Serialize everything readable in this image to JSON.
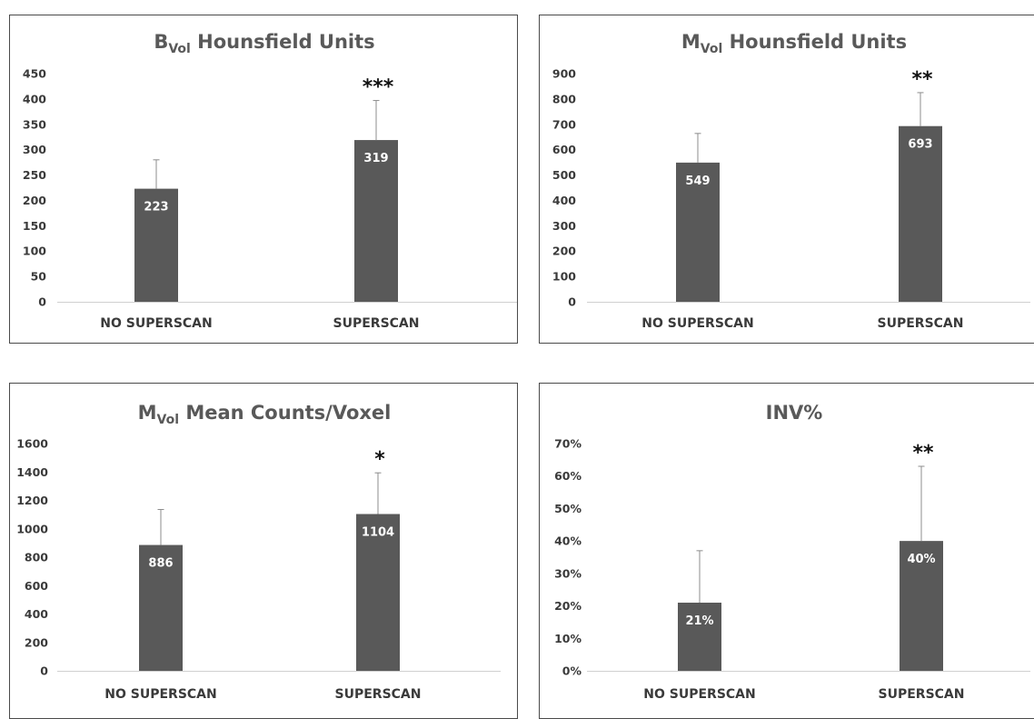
{
  "colors": {
    "bar": "#595959",
    "error_bar": "#8c8c8c",
    "axis": "#d0d0d0",
    "title": "#595959"
  },
  "chart_data": [
    {
      "type": "bar",
      "title": "BVol Hounsfield Units",
      "title_main": "B",
      "title_sub": "Vol",
      "title_rest": " Hounsfield Units",
      "categories": [
        "NO SUPERSCAN",
        "SUPERSCAN"
      ],
      "values": [
        223,
        319
      ],
      "value_labels": [
        "223",
        "319"
      ],
      "error_plus": [
        57,
        78
      ],
      "significance": [
        "",
        "***"
      ],
      "ylim": [
        0,
        450
      ],
      "yticks": [
        0,
        50,
        100,
        150,
        200,
        250,
        300,
        350,
        400,
        450
      ],
      "ytick_labels": [
        "0",
        "50",
        "100",
        "150",
        "200",
        "250",
        "300",
        "350",
        "400",
        "450"
      ],
      "xlabel": "",
      "ylabel": "",
      "grid": false
    },
    {
      "type": "bar",
      "title": "MVol Hounsfield Units",
      "title_main": "M",
      "title_sub": "Vol",
      "title_rest": " Hounsfield Units",
      "categories": [
        "NO SUPERSCAN",
        "SUPERSCAN"
      ],
      "values": [
        549,
        693
      ],
      "value_labels": [
        "549",
        "693"
      ],
      "error_plus": [
        115,
        132
      ],
      "significance": [
        "",
        "**"
      ],
      "ylim": [
        0,
        900
      ],
      "yticks": [
        0,
        100,
        200,
        300,
        400,
        500,
        600,
        700,
        800,
        900
      ],
      "ytick_labels": [
        "0",
        "100",
        "200",
        "300",
        "400",
        "500",
        "600",
        "700",
        "800",
        "900"
      ],
      "xlabel": "",
      "ylabel": "",
      "grid": false
    },
    {
      "type": "bar",
      "title": "MVol Mean Counts/Voxel",
      "title_main": "M",
      "title_sub": "Vol",
      "title_rest": " Mean Counts/Voxel",
      "categories": [
        "NO SUPERSCAN",
        "SUPERSCAN"
      ],
      "values": [
        886,
        1104
      ],
      "value_labels": [
        "886",
        "1104"
      ],
      "error_plus": [
        250,
        290
      ],
      "significance": [
        "",
        "*"
      ],
      "ylim": [
        0,
        1600
      ],
      "yticks": [
        0,
        200,
        400,
        600,
        800,
        1000,
        1200,
        1400,
        1600
      ],
      "ytick_labels": [
        "0",
        "200",
        "400",
        "600",
        "800",
        "1000",
        "1200",
        "1400",
        "1600"
      ],
      "xlabel": "",
      "ylabel": "",
      "grid": false
    },
    {
      "type": "bar",
      "title": "INV%",
      "title_main": "INV%",
      "title_sub": "",
      "title_rest": "",
      "categories": [
        "NO SUPERSCAN",
        "SUPERSCAN"
      ],
      "values": [
        21,
        40
      ],
      "value_labels": [
        "21%",
        "40%"
      ],
      "error_plus": [
        16,
        23
      ],
      "significance": [
        "",
        "**"
      ],
      "ylim": [
        0,
        70
      ],
      "yticks": [
        0,
        10,
        20,
        30,
        40,
        50,
        60,
        70
      ],
      "ytick_labels": [
        "0%",
        "10%",
        "20%",
        "30%",
        "40%",
        "50%",
        "60%",
        "70%"
      ],
      "xlabel": "",
      "ylabel": "",
      "grid": false
    }
  ]
}
